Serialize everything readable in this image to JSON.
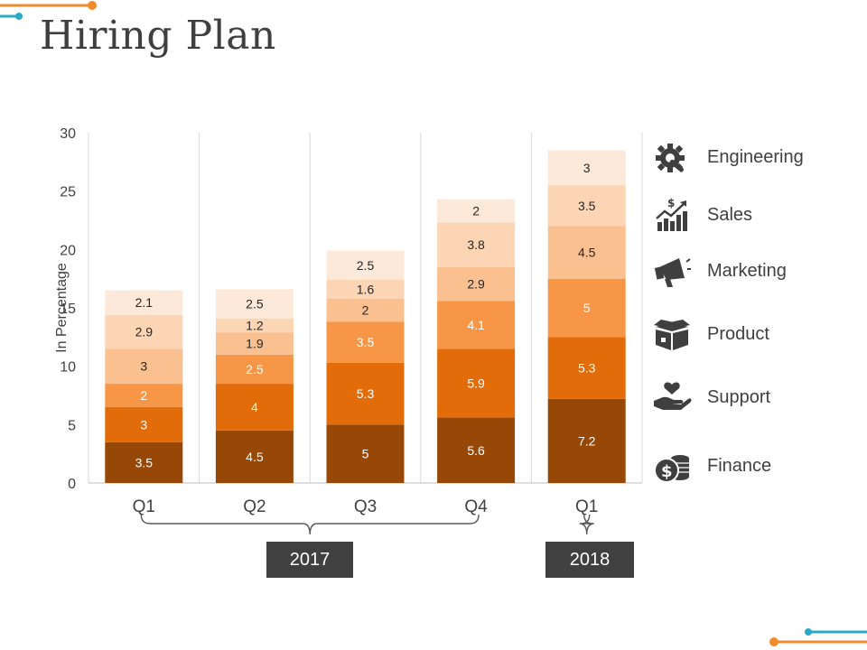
{
  "page": {
    "title": "Hiring Plan"
  },
  "colors": {
    "engineering": "#974706",
    "sales": "#E26B0A",
    "marketing": "#F79646",
    "product": "#FAC090",
    "support": "#FCD5B4",
    "finance": "#FDE9D9",
    "label_dark": "#ffffff",
    "label_light": "#262626",
    "accent_orange": "#F08C2C",
    "accent_teal": "#29A9C7"
  },
  "chart_data": {
    "type": "bar",
    "stacked": true,
    "title": "",
    "xlabel": "",
    "ylabel": "In Percentage",
    "ylim": [
      0,
      30
    ],
    "yticks": [
      0,
      5,
      10,
      15,
      20,
      25,
      30
    ],
    "categories": [
      "Q1",
      "Q2",
      "Q3",
      "Q4",
      "Q1"
    ],
    "series": [
      {
        "name": "Engineering",
        "key": "engineering",
        "values": [
          3.5,
          4.5,
          5,
          5.6,
          7.2
        ]
      },
      {
        "name": "Sales",
        "key": "sales",
        "values": [
          3,
          4,
          5.3,
          5.9,
          5.3
        ]
      },
      {
        "name": "Marketing",
        "key": "marketing",
        "values": [
          2,
          2.5,
          3.5,
          4.1,
          5
        ]
      },
      {
        "name": "Product",
        "key": "product",
        "values": [
          3,
          1.9,
          2,
          2.9,
          4.5
        ]
      },
      {
        "name": "Support",
        "key": "support",
        "values": [
          2.9,
          1.2,
          1.6,
          3.8,
          3.5
        ]
      },
      {
        "name": "Finance",
        "key": "finance",
        "values": [
          2.1,
          2.5,
          2.5,
          2,
          3
        ]
      }
    ],
    "groups": [
      {
        "label": "2017",
        "from": 0,
        "to": 3
      },
      {
        "label": "2018",
        "from": 4,
        "to": 4
      }
    ],
    "legend_position": "right"
  },
  "legend": [
    {
      "label": "Engineering",
      "icon": "gear-wrench-icon"
    },
    {
      "label": "Sales",
      "icon": "sales-growth-icon"
    },
    {
      "label": "Marketing",
      "icon": "megaphone-icon"
    },
    {
      "label": "Product",
      "icon": "open-box-icon"
    },
    {
      "label": "Support",
      "icon": "hand-heart-icon"
    },
    {
      "label": "Finance",
      "icon": "coins-icon"
    }
  ]
}
